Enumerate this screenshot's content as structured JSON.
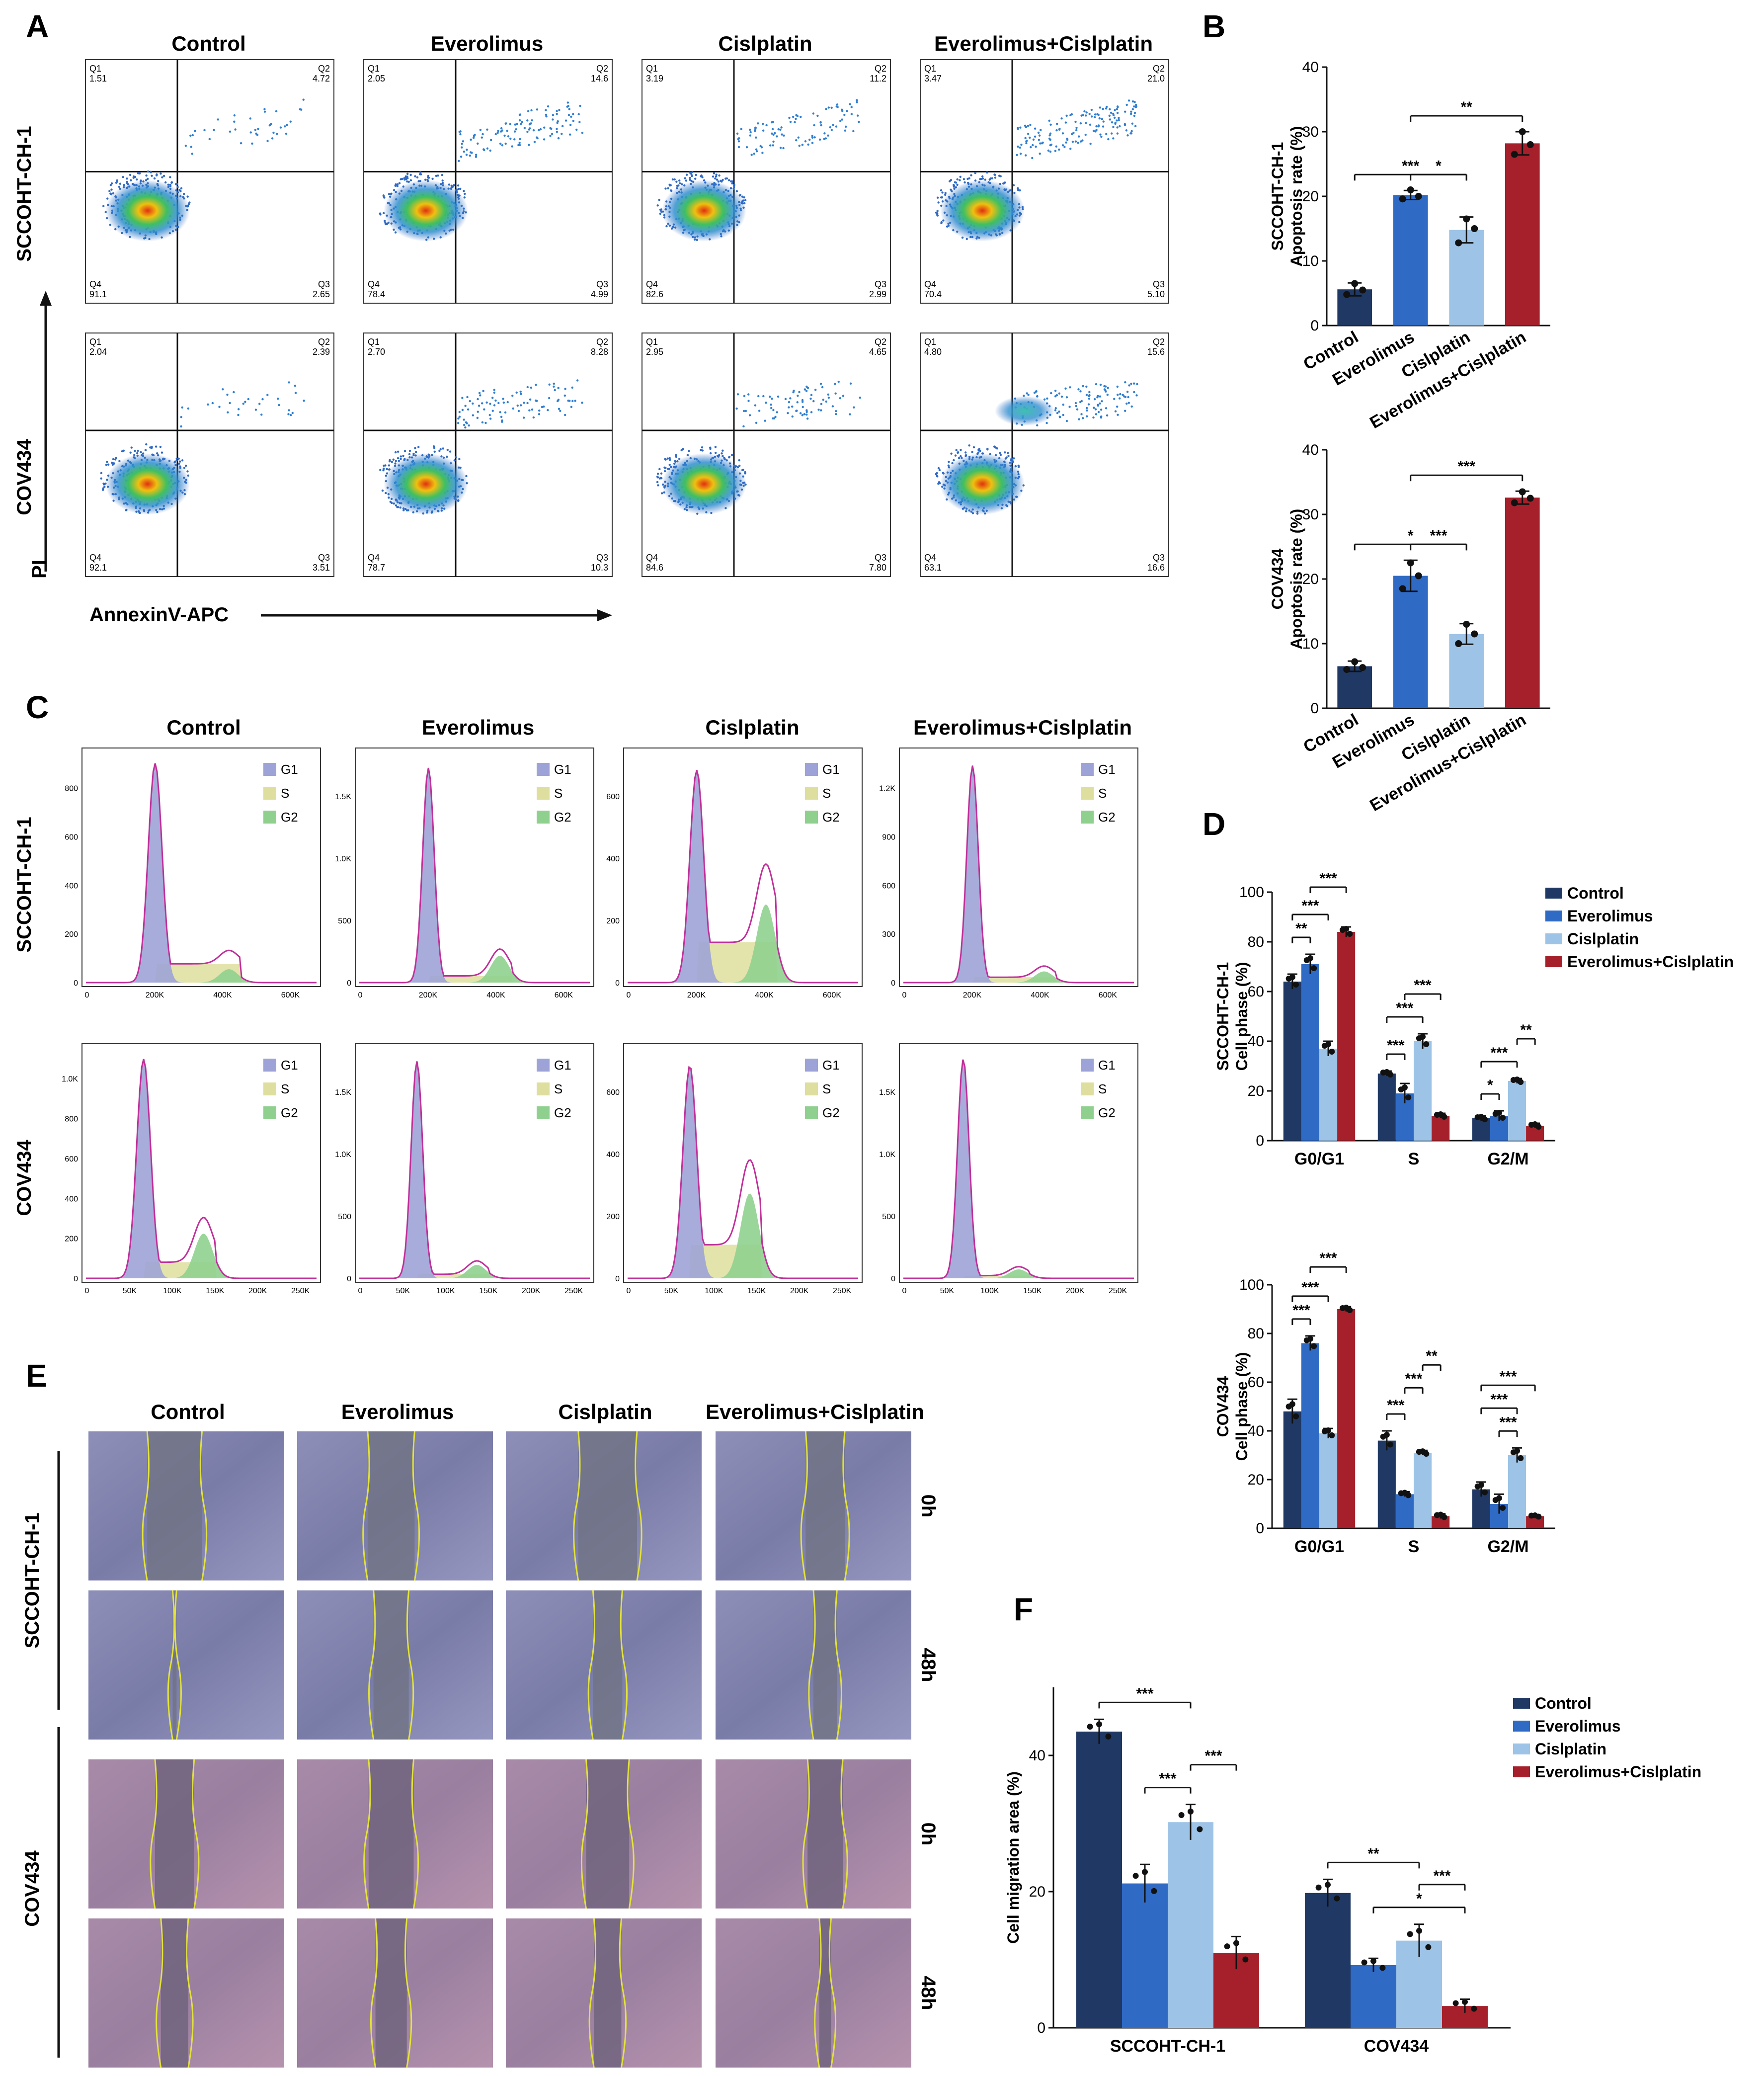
{
  "panels": {
    "A": "A",
    "B": "B",
    "C": "C",
    "D": "D",
    "E": "E",
    "F": "F"
  },
  "groups": [
    "Control",
    "Everolimus",
    "Cislplatin",
    "Everolimus+Cislplatin"
  ],
  "cell_lines": [
    "SCCOHT-CH-1",
    "COV434"
  ],
  "colors": {
    "control": "#1f3864",
    "everolimus": "#2f6ac4",
    "cisplatin": "#9dc3e6",
    "combo": "#a5202a",
    "g1": "#9da3d6",
    "s": "#dede9e",
    "g2": "#8fd08f"
  },
  "panel_a": {
    "x_axis_label": "AnnexinV-APC",
    "y_axis_label": "PI",
    "quadrant_labels": [
      "Q1",
      "Q2",
      "Q3",
      "Q4"
    ],
    "values": [
      [
        {
          "q1": "1.51",
          "q2": "4.72",
          "q3": "2.65",
          "q4": "91.1"
        },
        {
          "q1": "2.05",
          "q2": "14.6",
          "q3": "4.99",
          "q4": "78.4"
        },
        {
          "q1": "3.19",
          "q2": "11.2",
          "q3": "2.99",
          "q4": "82.6"
        },
        {
          "q1": "3.47",
          "q2": "21.0",
          "q3": "5.10",
          "q4": "70.4"
        }
      ],
      [
        {
          "q1": "2.04",
          "q2": "2.39",
          "q3": "3.51",
          "q4": "92.1"
        },
        {
          "q1": "2.70",
          "q2": "8.28",
          "q3": "10.3",
          "q4": "78.7"
        },
        {
          "q1": "2.95",
          "q2": "4.65",
          "q3": "7.80",
          "q4": "84.6"
        },
        {
          "q1": "4.80",
          "q2": "15.6",
          "q3": "16.6",
          "q4": "63.1"
        }
      ]
    ]
  },
  "panel_c": {
    "legend": [
      "G1",
      "S",
      "G2"
    ],
    "row1_xticks": [
      "0",
      "200K",
      "400K",
      "600K"
    ],
    "row2_xticks": [
      "0",
      "50K",
      "100K",
      "150K",
      "200K",
      "250K"
    ],
    "yticks": [
      [
        [
          "0",
          "200",
          "400",
          "600",
          "800"
        ],
        [
          "0",
          "500",
          "1.0K",
          "1.5K"
        ],
        [
          "0",
          "200",
          "400",
          "600"
        ],
        [
          "0",
          "300",
          "600",
          "900",
          "1.2K"
        ]
      ],
      [
        [
          "0",
          "200",
          "400",
          "600",
          "800",
          "1.0K"
        ],
        [
          "0",
          "500",
          "1.0K",
          "1.5K"
        ],
        [
          "0",
          "200",
          "400",
          "600"
        ],
        [
          "0",
          "500",
          "1.0K",
          "1.5K"
        ]
      ]
    ]
  },
  "panel_e": {
    "time_labels": [
      "0h",
      "48h",
      "0h",
      "48h"
    ]
  },
  "chart_data": [
    {
      "id": "B-top",
      "type": "bar",
      "title": "",
      "ylabel": "SCCOHT-CH-1\nApoptosis rate (%)",
      "ylim": [
        0,
        40
      ],
      "yticks": [
        0,
        10,
        20,
        30,
        40
      ],
      "categories": [
        "Control",
        "Everolimus",
        "Cislplatin",
        "Everolimus+Cislplatin"
      ],
      "values": [
        5.6,
        20.2,
        14.8,
        28.2
      ],
      "errors": [
        1.0,
        0.7,
        2.0,
        1.8
      ],
      "points": [
        [
          4.8,
          6.5,
          5.5
        ],
        [
          19.6,
          21.0,
          20.0
        ],
        [
          12.8,
          16.5,
          15.0
        ],
        [
          26.5,
          30.0,
          28.0
        ]
      ],
      "significance": [
        {
          "from": 1,
          "to": 2,
          "label": "*"
        },
        {
          "from": 0,
          "to": 2,
          "label": "***"
        },
        {
          "from": 1,
          "to": 3,
          "label": "**"
        }
      ]
    },
    {
      "id": "B-bottom",
      "type": "bar",
      "title": "",
      "ylabel": "COV434\nApoptosis rate (%)",
      "ylim": [
        0,
        40
      ],
      "yticks": [
        0,
        10,
        20,
        30,
        40
      ],
      "categories": [
        "Control",
        "Everolimus",
        "Cislplatin",
        "Everolimus+Cislplatin"
      ],
      "values": [
        6.5,
        20.5,
        11.5,
        32.6
      ],
      "errors": [
        0.8,
        2.4,
        1.6,
        1.0
      ],
      "points": [
        [
          6.0,
          7.2,
          6.3
        ],
        [
          18.5,
          22.5,
          20.5
        ],
        [
          10.0,
          13.0,
          11.5
        ],
        [
          31.8,
          33.5,
          32.5
        ]
      ],
      "significance": [
        {
          "from": 1,
          "to": 2,
          "label": "***"
        },
        {
          "from": 0,
          "to": 2,
          "label": "*"
        },
        {
          "from": 1,
          "to": 3,
          "label": "***"
        }
      ]
    },
    {
      "id": "D-top",
      "type": "bar",
      "ylabel": "SCCOHT-CH-1\nCell phase (%)",
      "ylim": [
        0,
        100
      ],
      "yticks": [
        0,
        20,
        40,
        60,
        80,
        100
      ],
      "categories": [
        "G0/G1",
        "S",
        "G2/M"
      ],
      "series": [
        {
          "name": "Control",
          "values": [
            64,
            27,
            9
          ],
          "errors": [
            3,
            1,
            1
          ]
        },
        {
          "name": "Everolimus",
          "values": [
            71,
            19,
            10
          ],
          "errors": [
            4,
            4,
            2
          ]
        },
        {
          "name": "Cislplatin",
          "values": [
            37,
            40,
            24
          ],
          "errors": [
            3,
            3,
            1
          ]
        },
        {
          "name": "Everolimus+Cislplatin",
          "values": [
            84,
            10,
            6
          ],
          "errors": [
            2,
            1,
            1
          ]
        }
      ],
      "significance": [
        {
          "group": 0,
          "from": 0,
          "to": 1,
          "label": "**"
        },
        {
          "group": 0,
          "from": 0,
          "to": 2,
          "label": "***"
        },
        {
          "group": 0,
          "from": 1,
          "to": 3,
          "label": "***"
        },
        {
          "group": 1,
          "from": 0,
          "to": 1,
          "label": "***"
        },
        {
          "group": 1,
          "from": 0,
          "to": 2,
          "label": "***"
        },
        {
          "group": 1,
          "from": 1,
          "to": 3,
          "label": "***"
        },
        {
          "group": 2,
          "from": 0,
          "to": 1,
          "label": "*"
        },
        {
          "group": 2,
          "from": 0,
          "to": 2,
          "label": "***"
        },
        {
          "group": 2,
          "from": 2,
          "to": 3,
          "label": "**"
        }
      ]
    },
    {
      "id": "D-bottom",
      "type": "bar",
      "ylabel": "COV434\nCell phase (%)",
      "ylim": [
        0,
        100
      ],
      "yticks": [
        0,
        20,
        40,
        60,
        80,
        100
      ],
      "categories": [
        "G0/G1",
        "S",
        "G2/M"
      ],
      "series": [
        {
          "name": "Control",
          "values": [
            48,
            36,
            16
          ],
          "errors": [
            5,
            4,
            3
          ]
        },
        {
          "name": "Everolimus",
          "values": [
            76,
            14,
            10
          ],
          "errors": [
            3,
            1,
            4
          ]
        },
        {
          "name": "Cislplatin",
          "values": [
            39,
            31,
            30
          ],
          "errors": [
            2,
            1,
            3
          ]
        },
        {
          "name": "Everolimus+Cislplatin",
          "values": [
            90,
            5,
            5
          ],
          "errors": [
            1,
            1,
            0.5
          ]
        }
      ],
      "significance": [
        {
          "group": 0,
          "from": 0,
          "to": 1,
          "label": "***"
        },
        {
          "group": 0,
          "from": 0,
          "to": 2,
          "label": "***"
        },
        {
          "group": 0,
          "from": 1,
          "to": 3,
          "label": "***"
        },
        {
          "group": 1,
          "from": 0,
          "to": 1,
          "label": "***"
        },
        {
          "group": 1,
          "from": 1,
          "to": 2,
          "label": "***"
        },
        {
          "group": 1,
          "from": 2,
          "to": 3,
          "label": "**"
        },
        {
          "group": 2,
          "from": 1,
          "to": 2,
          "label": "***"
        },
        {
          "group": 2,
          "from": 0,
          "to": 2,
          "label": "***"
        },
        {
          "group": 2,
          "from": 0,
          "to": 3,
          "label": "***"
        }
      ]
    },
    {
      "id": "F",
      "type": "bar",
      "ylabel": "Cell migration area (%)",
      "ylim": [
        0,
        50
      ],
      "yticks": [
        0,
        20,
        40
      ],
      "categories": [
        "SCCOHT-CH-1",
        "COV434"
      ],
      "series": [
        {
          "name": "Control",
          "values": [
            43.5,
            19.8
          ],
          "errors": [
            1.8,
            2.0
          ]
        },
        {
          "name": "Everolimus",
          "values": [
            21.2,
            9.2
          ],
          "errors": [
            2.8,
            1.0
          ]
        },
        {
          "name": "Cislplatin",
          "values": [
            30.2,
            12.8
          ],
          "errors": [
            2.6,
            2.4
          ]
        },
        {
          "name": "Everolimus+Cislplatin",
          "values": [
            11.0,
            3.2
          ],
          "errors": [
            2.4,
            1.0
          ]
        }
      ],
      "significance": [
        {
          "group": 0,
          "from": 0,
          "to": 2,
          "label": "***"
        },
        {
          "group": 0,
          "from": 1,
          "to": 2,
          "label": "***"
        },
        {
          "group": 0,
          "from": 2,
          "to": 3,
          "label": "***"
        },
        {
          "group": 1,
          "from": 0,
          "to": 2,
          "label": "**"
        },
        {
          "group": 1,
          "from": 1,
          "to": 3,
          "label": "*"
        },
        {
          "group": 1,
          "from": 2,
          "to": 3,
          "label": "***"
        }
      ]
    }
  ]
}
